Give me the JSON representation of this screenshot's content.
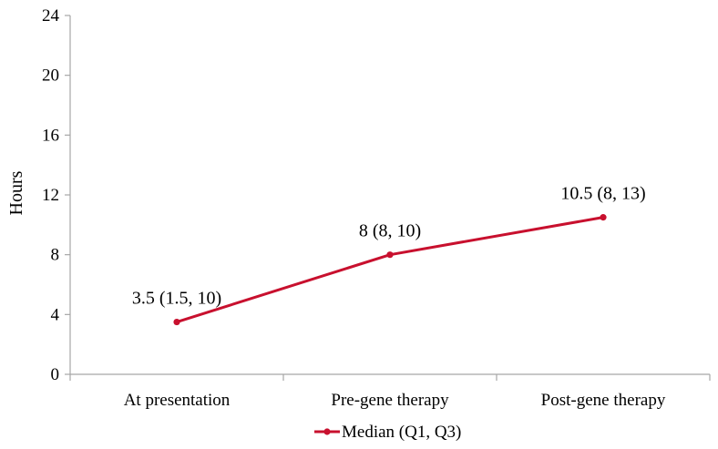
{
  "chart_data": {
    "type": "line",
    "categories": [
      "At presentation",
      "Pre-gene therapy",
      "Post-gene therapy"
    ],
    "series": [
      {
        "name": "Median (Q1, Q3)",
        "values": [
          3.5,
          8,
          10.5
        ],
        "data_labels": [
          "3.5 (1.5, 10)",
          "8 (8, 10)",
          "10.5 (8, 13)"
        ],
        "color": "#c8102e"
      }
    ],
    "title": "",
    "xlabel": "",
    "ylabel": "Hours",
    "ylim": [
      0,
      24
    ],
    "yticks": [
      0,
      4,
      8,
      12,
      16,
      20,
      24
    ],
    "ytick_labels": [
      "0",
      "4",
      "8",
      "12",
      "16",
      "20",
      "24"
    ],
    "grid": false,
    "legend_position": "bottom"
  }
}
